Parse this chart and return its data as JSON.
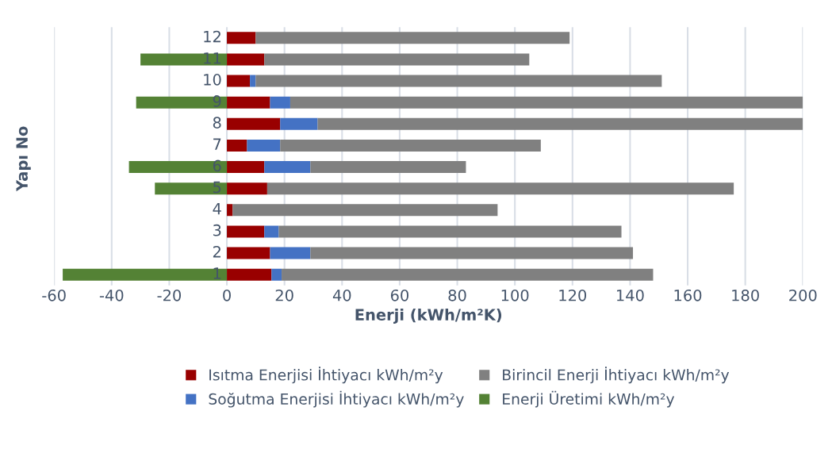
{
  "chart_data": {
    "type": "bar",
    "orientation": "horizontal",
    "stacked": true,
    "xlabel": "Enerji (kWh/m²K)",
    "ylabel": "Yapı No",
    "categories": [
      "12",
      "11",
      "10",
      "9",
      "8",
      "7",
      "6",
      "5",
      "4",
      "3",
      "2",
      "1"
    ],
    "series": [
      {
        "name": "Isıtma Enerjisi İhtiyacı kWh/m²y",
        "color": "#990000",
        "values": [
          10,
          13,
          8,
          15,
          18.5,
          7,
          13,
          14,
          2,
          13,
          15,
          15.5
        ]
      },
      {
        "name": "Soğutma Enerjisi İhtiyacı kWh/m²y",
        "color": "#4472c4",
        "values": [
          null,
          null,
          2,
          7,
          13,
          11.5,
          16,
          null,
          null,
          5,
          14,
          3.5
        ]
      },
      {
        "name": "Birincil Enerji İhtiyacı kWh/m²y",
        "color": "#808080",
        "values": [
          109,
          92,
          141,
          178,
          168.5,
          90.5,
          54,
          162,
          92,
          119,
          112,
          129
        ]
      },
      {
        "name": "Enerji Üretimi kWh/m²y",
        "color": "#548235",
        "values": [
          null,
          -30,
          null,
          -31.5,
          null,
          null,
          -34,
          -25,
          null,
          null,
          null,
          -57
        ]
      }
    ],
    "xlim": [
      -60,
      200
    ],
    "xticks": [
      -60,
      -40,
      -20,
      0,
      20,
      40,
      60,
      80,
      100,
      120,
      140,
      160,
      180,
      200
    ],
    "grid": "x",
    "legend": "bottom"
  }
}
